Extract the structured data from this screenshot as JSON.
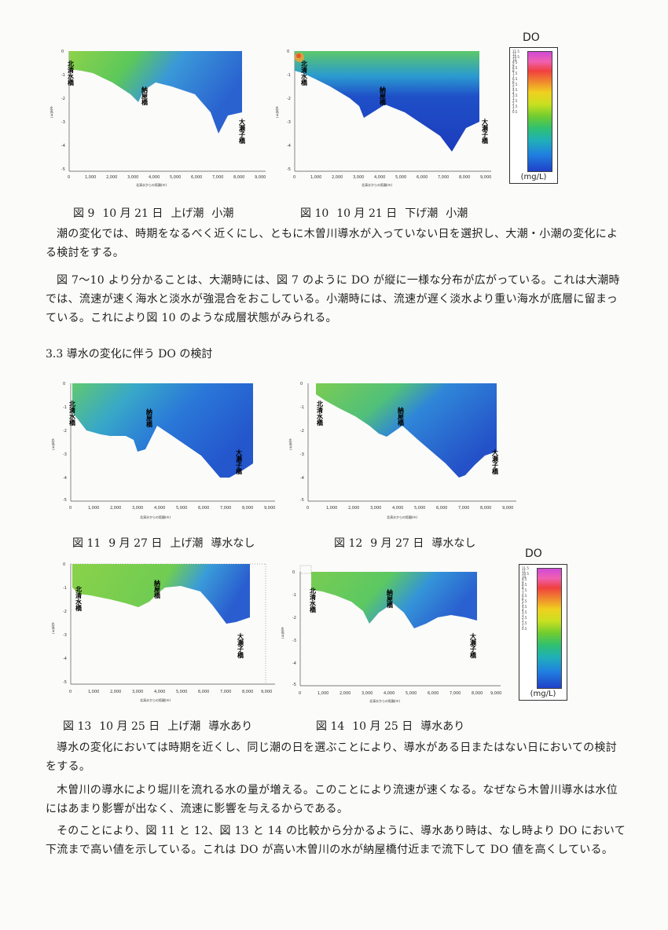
{
  "figures": {
    "fig9": {
      "caption": [
        "図 9",
        "10 月 21 日",
        "上げ潮",
        "小潮"
      ],
      "labels": [
        "北清水橋",
        "納屋橋",
        "大瀬子橋"
      ],
      "xaxis_title": "北清水からの距離(m)",
      "yaxis_title": "水深(m)",
      "xticks": [
        "0",
        "1,000",
        "2,000",
        "3,000",
        "4,000",
        "5,000",
        "6,000",
        "7,000",
        "8,000",
        "9,000"
      ],
      "yticks": [
        "0",
        "-1",
        "-2",
        "-3",
        "-4",
        "-5"
      ]
    },
    "fig10": {
      "caption": [
        "図 10",
        "10 月 21 日",
        "下げ潮",
        "小潮"
      ],
      "labels": [
        "北清水橋",
        "納屋橋",
        "大瀬子橋"
      ],
      "xaxis_title": "北清水からの距離(m)",
      "yaxis_title": "水深(m)",
      "xticks": [
        "0",
        "1,000",
        "2,000",
        "3,000",
        "4,000",
        "5,000",
        "6,000",
        "7,000",
        "8,000",
        "9,000"
      ],
      "yticks": [
        "0",
        "-1",
        "-2",
        "-3",
        "-4",
        "-5"
      ]
    },
    "fig11": {
      "caption": [
        "図 11",
        "9 月 27 日",
        "上げ潮",
        "導水なし"
      ],
      "labels": [
        "北清水橋",
        "納屋橋",
        "大瀬子橋"
      ],
      "xaxis_title": "北清水からの距離(m)",
      "yaxis_title": "水深(m)",
      "xticks": [
        "0",
        "1,000",
        "2,000",
        "3,000",
        "4,000",
        "5,000",
        "6,000",
        "7,000",
        "8,000",
        "9,000"
      ],
      "yticks": [
        "0",
        "-1",
        "-2",
        "-3",
        "-4",
        "-5"
      ]
    },
    "fig12": {
      "caption": [
        "図 12",
        "9 月 27 日",
        "導水なし"
      ],
      "labels": [
        "北清水橋",
        "納屋橋",
        "大瀬子橋"
      ],
      "xaxis_title": "北清水からの距離(m)",
      "yaxis_title": "水深(m)",
      "xticks": [
        "0",
        "1,000",
        "2,000",
        "3,000",
        "4,000",
        "5,000",
        "6,000",
        "7,000",
        "8,000",
        "9,000"
      ],
      "yticks": [
        "0",
        "-1",
        "-2",
        "-3",
        "-4",
        "-5"
      ]
    },
    "fig13": {
      "caption": [
        "図 13",
        "10 月 25 日",
        "上げ潮",
        "導水あり"
      ],
      "labels": [
        "北清水橋",
        "納屋橋",
        "大瀬子橋"
      ],
      "xaxis_title": "北清水からの距離(m)",
      "yaxis_title": "水深(m)",
      "xticks": [
        "0",
        "1,000",
        "2,000",
        "3,000",
        "4,000",
        "5,000",
        "6,000",
        "7,000",
        "8,000",
        "9,000"
      ],
      "yticks": [
        "0",
        "-1",
        "-2",
        "-3",
        "-4",
        "-5"
      ]
    },
    "fig14": {
      "caption": [
        "図 14",
        "10 月 25 日",
        "導水あり"
      ],
      "labels": [
        "北清水橋",
        "納屋橋",
        "大瀬子橋"
      ],
      "xaxis_title": "北清水からの距離(m)",
      "yaxis_title": "水深(m)",
      "xticks": [
        "0",
        "1,000",
        "2,000",
        "3,000",
        "4,000",
        "5,000",
        "6,000",
        "7,000",
        "8,000",
        "9,000"
      ],
      "yticks": [
        "0",
        "-1",
        "-2",
        "-3",
        "-4",
        "-5"
      ]
    }
  },
  "legend": {
    "title": "DO",
    "unit": "(mg/L)",
    "ticks": [
      "11.5",
      "11",
      "10.5",
      "10",
      "9.5",
      "9",
      "8.5",
      "8",
      "7.5",
      "7",
      "6.5",
      "6",
      "5.5",
      "5",
      "4.5",
      "4",
      "3.5",
      "3",
      "2.5",
      "2",
      "1.5",
      "1",
      "0.5"
    ]
  },
  "paragraphs": {
    "p1": "潮の変化では、時期をなるべく近くにし、ともに木曽川導水が入っていない日を選択し、大潮・小潮の変化による検討をする。",
    "p2": "図 7〜10 より分かることは、大潮時には、図 7 のように DO が縦に一様な分布が広がっている。これは大潮時では、流速が速く海水と淡水が強混合をおこしている。小潮時には、流速が遅く淡水より重い海水が底層に留まっている。これにより図 10 のような成層状態がみられる。",
    "heading": "3.3 導水の変化に伴う DO の検討",
    "p3": "導水の変化においては時期を近くし、同じ潮の日を選ぶことにより、導水がある日またはない日においての検討をする。",
    "p4": "木曽川の導水により堀川を流れる水の量が増える。このことにより流速が速くなる。なぜなら木曽川導水は水位にはあまり影響が出なく、流速に影響を与えるからである。",
    "p5": "そのことにより、図 11 と 12、図 13 と 14 の比較から分かるように、導水あり時は、なし時より DO において下流まで高い値を示している。これは DO が高い木曽川の水が納屋橋付近まで流下して DO 値を高くしている。"
  }
}
